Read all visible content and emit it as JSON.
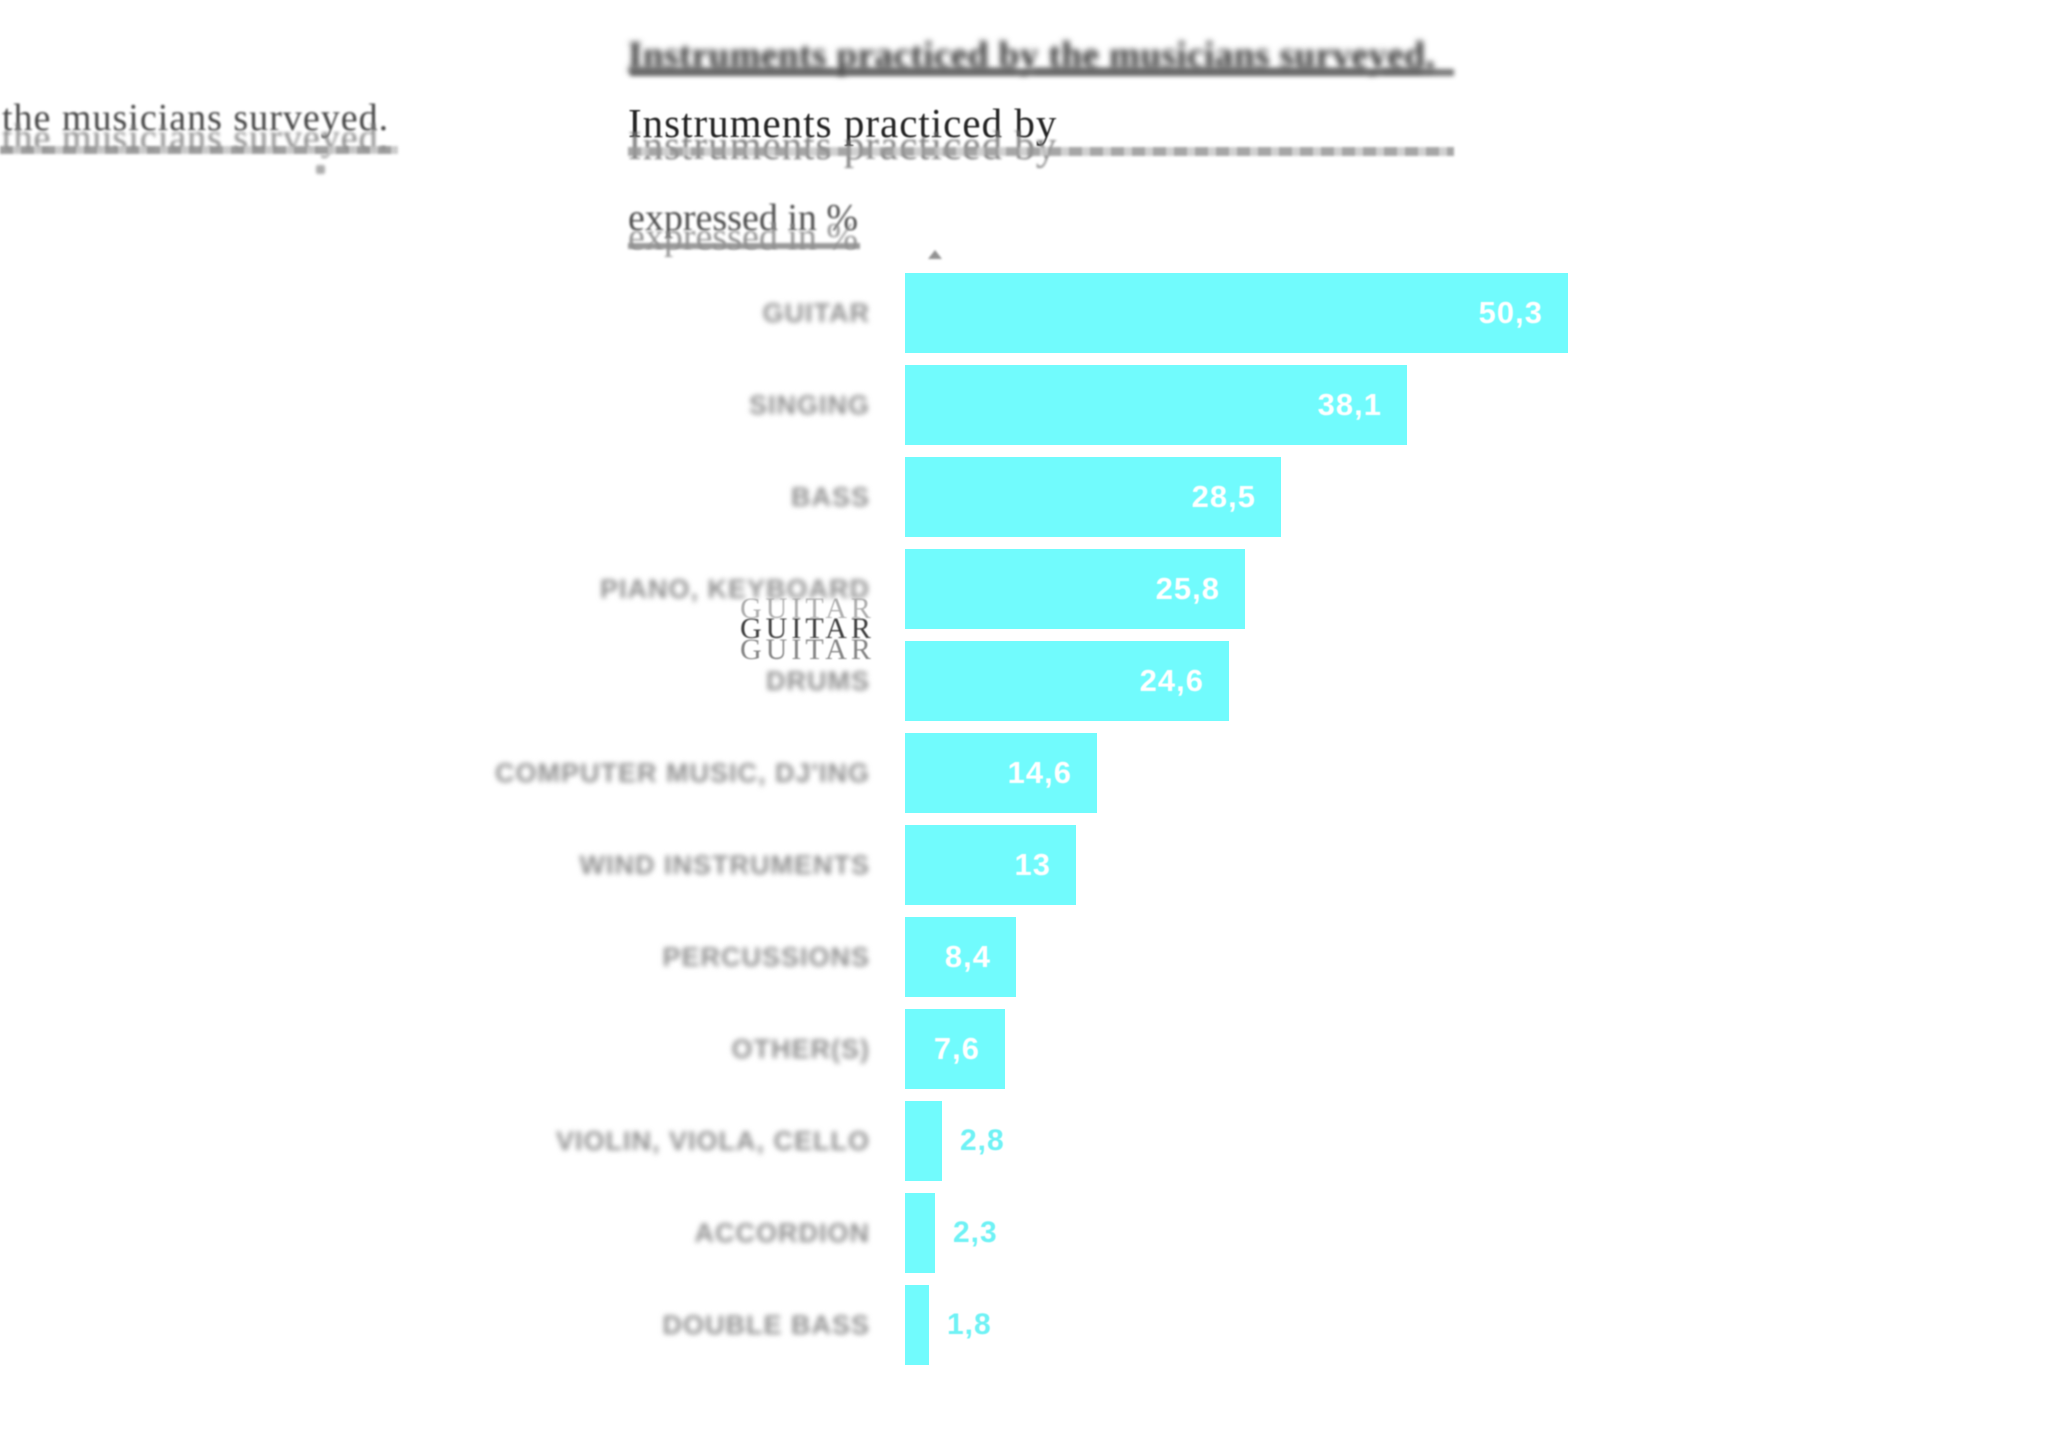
{
  "page": {
    "background": "#ffffff"
  },
  "ghost_text": {
    "title_main": "Instruments practiced by the musicians surveyed,",
    "title_line2": "Instruments practiced by",
    "title_line3": "expressed in %",
    "left_line": "the musicians surveyed.",
    "guitar_ghost": "GUITAR"
  },
  "chart_data": {
    "type": "bar",
    "orientation": "horizontal",
    "title": "Instruments practiced by the musicians surveyed, expressed in %",
    "unit": "%",
    "decimal_separator": ",",
    "bar_color": "#71FBFD",
    "label_color": "#8f8f8f",
    "value_inside_color": "#ffffff",
    "value_outside_color": "#6FF2F5",
    "xlim": [
      0,
      55
    ],
    "grid": false,
    "legend": false,
    "categories": [
      "GUITAR",
      "SINGING",
      "BASS",
      "PIANO, KEYBOARD",
      "DRUMS",
      "COMPUTER MUSIC, DJ'ING",
      "WIND INSTRUMENTS",
      "PERCUSSIONS",
      "OTHER(S)",
      "VIOLIN, VIOLA, CELLO",
      "ACCORDION",
      "DOUBLE BASS"
    ],
    "values": [
      50.3,
      38.1,
      28.5,
      25.8,
      24.6,
      14.6,
      13,
      8.4,
      7.6,
      2.8,
      2.3,
      1.8
    ],
    "value_labels": [
      "50,3",
      "38,1",
      "28,5",
      "25,8",
      "24,6",
      "14,6",
      "13",
      "8,4",
      "7,6",
      "2,8",
      "2,3",
      "1,8"
    ],
    "bars": [
      {
        "label": "GUITAR",
        "value": 50.3,
        "display": "50,3",
        "inside": true
      },
      {
        "label": "SINGING",
        "value": 38.1,
        "display": "38,1",
        "inside": true
      },
      {
        "label": "BASS",
        "value": 28.5,
        "display": "28,5",
        "inside": true
      },
      {
        "label": "PIANO, KEYBOARD",
        "value": 25.8,
        "display": "25,8",
        "inside": true
      },
      {
        "label": "DRUMS",
        "value": 24.6,
        "display": "24,6",
        "inside": true
      },
      {
        "label": "COMPUTER MUSIC, DJ'ING",
        "value": 14.6,
        "display": "14,6",
        "inside": true
      },
      {
        "label": "WIND INSTRUMENTS",
        "value": 13,
        "display": "13",
        "inside": true
      },
      {
        "label": "PERCUSSIONS",
        "value": 8.4,
        "display": "8,4",
        "inside": true
      },
      {
        "label": "OTHER(S)",
        "value": 7.6,
        "display": "7,6",
        "inside": true
      },
      {
        "label": "VIOLIN, VIOLA, CELLO",
        "value": 2.8,
        "display": "2,8",
        "inside": false
      },
      {
        "label": "ACCORDION",
        "value": 2.3,
        "display": "2,3",
        "inside": false
      },
      {
        "label": "DOUBLE BASS",
        "value": 1.8,
        "display": "1,8",
        "inside": false
      }
    ]
  }
}
